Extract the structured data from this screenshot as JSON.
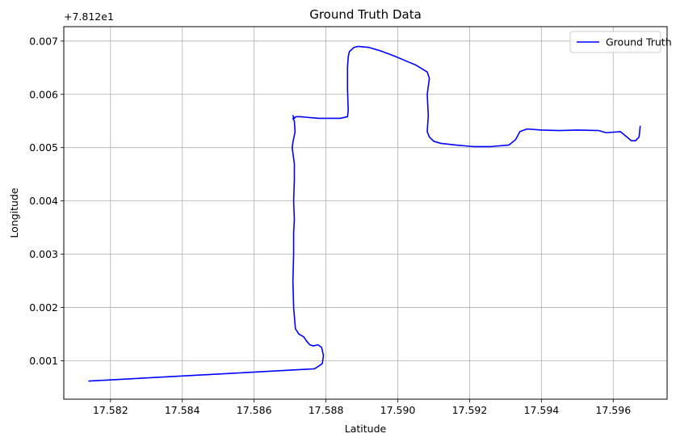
{
  "chart_data": {
    "type": "line",
    "title": "Ground Truth Data",
    "xlabel": "Latitude",
    "ylabel": "Longitude",
    "y_offset_text": "+7.812e1",
    "xlim": [
      17.5807,
      17.5975
    ],
    "ylim": [
      0.00028,
      0.00727
    ],
    "x_ticks": [
      17.582,
      17.584,
      17.586,
      17.588,
      17.59,
      17.592,
      17.594,
      17.596
    ],
    "x_tick_labels": [
      "17.582",
      "17.584",
      "17.586",
      "17.588",
      "17.590",
      "17.592",
      "17.594",
      "17.596"
    ],
    "y_ticks": [
      0.001,
      0.002,
      0.003,
      0.004,
      0.005,
      0.006,
      0.007
    ],
    "y_tick_labels": [
      "0.001",
      "0.002",
      "0.003",
      "0.004",
      "0.005",
      "0.006",
      "0.007"
    ],
    "grid": true,
    "legend": {
      "position": "upper-right"
    },
    "series": [
      {
        "name": "Ground Truth",
        "color": "#0000ff",
        "x": [
          17.5814,
          17.58768,
          17.5878,
          17.5879,
          17.58793,
          17.58788,
          17.58778,
          17.58765,
          17.58755,
          17.58745,
          17.58738,
          17.58725,
          17.58715,
          17.5871,
          17.58708,
          17.5871,
          17.5871,
          17.58712,
          17.5871,
          17.58712,
          17.58712,
          17.58706,
          17.58708,
          17.58714,
          17.58712,
          17.58708,
          17.58712,
          17.58708,
          17.58712,
          17.58716,
          17.5872,
          17.5873,
          17.58745,
          17.5878,
          17.5881,
          17.5884,
          17.5886,
          17.58862,
          17.5886,
          17.5886,
          17.58862,
          17.58865,
          17.58878,
          17.5889,
          17.5892,
          17.5895,
          17.5899,
          17.5905,
          17.59082,
          17.59088,
          17.59082,
          17.59085,
          17.59082,
          17.59088,
          17.591,
          17.5912,
          17.5916,
          17.5921,
          17.5926,
          17.5931,
          17.59328,
          17.5934,
          17.5936,
          17.594,
          17.5945,
          17.595,
          17.5956,
          17.5958,
          17.5962,
          17.59638,
          17.5965,
          17.59662,
          17.59672,
          17.59675
        ],
        "y": [
          0.00062,
          0.00085,
          0.0009,
          0.00095,
          0.0011,
          0.00125,
          0.0013,
          0.00128,
          0.0013,
          0.00138,
          0.00145,
          0.0015,
          0.0016,
          0.002,
          0.0025,
          0.003,
          0.0034,
          0.00365,
          0.004,
          0.0044,
          0.0047,
          0.005,
          0.0051,
          0.0053,
          0.0055,
          0.00555,
          0.00555,
          0.0056,
          0.00555,
          0.00558,
          0.00558,
          0.00558,
          0.00557,
          0.00555,
          0.00555,
          0.00555,
          0.00558,
          0.0057,
          0.0061,
          0.0065,
          0.0067,
          0.0068,
          0.00688,
          0.0069,
          0.00688,
          0.00682,
          0.00672,
          0.00655,
          0.00642,
          0.0063,
          0.006,
          0.0056,
          0.0053,
          0.0052,
          0.00512,
          0.00508,
          0.00505,
          0.00502,
          0.00502,
          0.00505,
          0.00515,
          0.0053,
          0.00535,
          0.00533,
          0.00532,
          0.00533,
          0.00532,
          0.00528,
          0.0053,
          0.0052,
          0.00513,
          0.00513,
          0.0052,
          0.0054
        ]
      }
    ]
  }
}
